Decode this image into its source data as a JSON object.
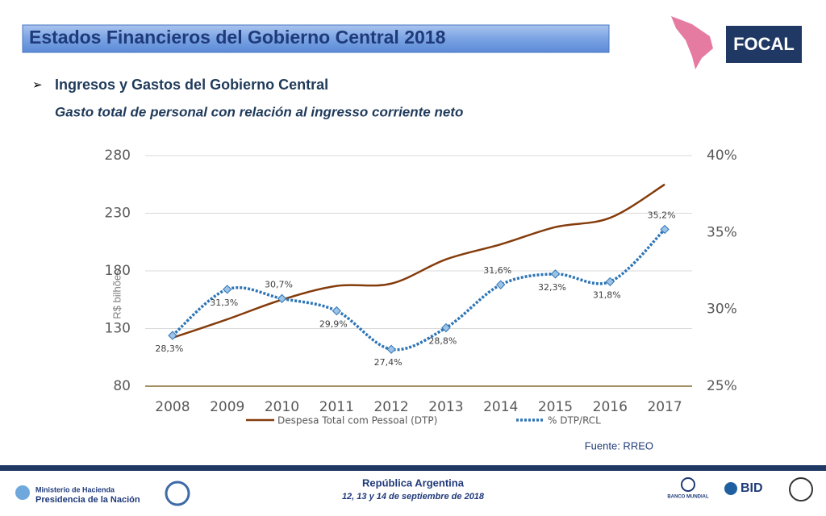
{
  "header": {
    "title": "Estados Financieros del Gobierno Central 2018",
    "logo": "FOCAL",
    "bullet": "Ingresos y Gastos del Gobierno Central",
    "subtitle": "Gasto total de personal con relación al ingresso corriente neto"
  },
  "chart_data": {
    "type": "line",
    "categories": [
      "2008",
      "2009",
      "2010",
      "2011",
      "2012",
      "2013",
      "2014",
      "2015",
      "2016",
      "2017"
    ],
    "y_label": "R$ bilhões",
    "series": [
      {
        "name": "Despesa Total com Pessoal (DTP)",
        "color": "#843c0c",
        "values": [
          122,
          138,
          155,
          167,
          169,
          190,
          203,
          218,
          226,
          255
        ]
      },
      {
        "name": "% DTP/RCL",
        "color": "#2e75b6",
        "axis": "y2",
        "values": [
          28.3,
          31.3,
          30.7,
          29.9,
          27.4,
          28.8,
          31.6,
          32.3,
          31.8,
          35.2
        ],
        "value_labels": [
          "28,3%",
          "31,3%",
          "30,7%",
          "29,9%",
          "27,4%",
          "28,8%",
          "31,6%",
          "32,3%",
          "31,8%",
          "35,2%"
        ]
      }
    ],
    "ylim": [
      80,
      280
    ],
    "yticks": [
      80,
      130,
      180,
      230,
      280
    ],
    "y2lim": [
      25,
      40
    ],
    "y2ticks": [
      {
        "value": 25,
        "label": "25%"
      },
      {
        "value": 30,
        "label": "30%"
      },
      {
        "value": 35,
        "label": "35%"
      },
      {
        "value": 40,
        "label": "40%"
      }
    ],
    "grid": true,
    "legend": "bottom",
    "source": "Fuente: RREO"
  },
  "footer": {
    "country": "República Argentina",
    "dates": "12, 13 y 14 de septiembre de 2018",
    "ministry": "Ministerio de Hacienda",
    "presidency": "Presidencia de la Nación",
    "wb": "BANCO MUNDIAL",
    "bid": "BID"
  }
}
